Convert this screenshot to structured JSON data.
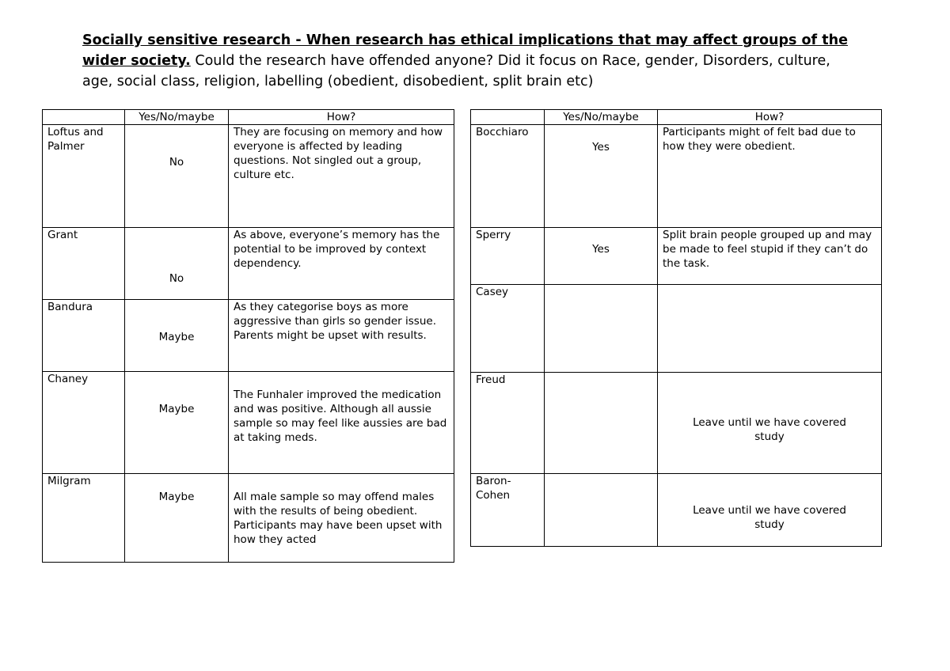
{
  "title": {
    "bold": "Socially sensitive research - When research has ethical implications that may affect groups of the wider society.",
    "normal": " Could the research have offended anyone? Did it focus on Race, gender, Disorders, culture, age, social class, religion, labelling (obedient, disobedient, split brain etc)"
  },
  "headers": {
    "name": "",
    "answer": "Yes/No/maybe",
    "how": "How?"
  },
  "left_rows": [
    {
      "name": "Loftus and Palmer",
      "answer": "No",
      "how": "They are focusing on memory and how everyone is affected by leading questions. Not singled out a group, culture etc."
    },
    {
      "name": "Grant",
      "answer": "No",
      "how": "As above, everyone’s memory has the potential to be improved by context dependency."
    },
    {
      "name": "Bandura",
      "answer": "Maybe",
      "how": "As they categorise boys as more aggressive than girls so gender issue. Parents might be upset with results."
    },
    {
      "name": "Chaney",
      "answer": "Maybe",
      "how": "The Funhaler improved the medication and was positive. Although all aussie sample so may feel like aussies are bad at taking meds."
    },
    {
      "name": "Milgram",
      "answer": "Maybe",
      "how": "All male sample so may offend males with the results of being obedient. Participants may have been upset with how they acted"
    }
  ],
  "right_rows": [
    {
      "name": "Bocchiaro",
      "answer": "Yes",
      "how": "Participants might of felt bad due to how they were obedient."
    },
    {
      "name": "Sperry",
      "answer": "Yes",
      "how": "Split brain people grouped up and may be made to feel stupid if they can’t do the task."
    },
    {
      "name": "Casey",
      "answer": "",
      "how": ""
    },
    {
      "name": "Freud",
      "answer": "",
      "how": "Leave until we have covered study"
    },
    {
      "name": "Baron-Cohen",
      "answer": "",
      "how": "Leave until we have covered study"
    }
  ]
}
